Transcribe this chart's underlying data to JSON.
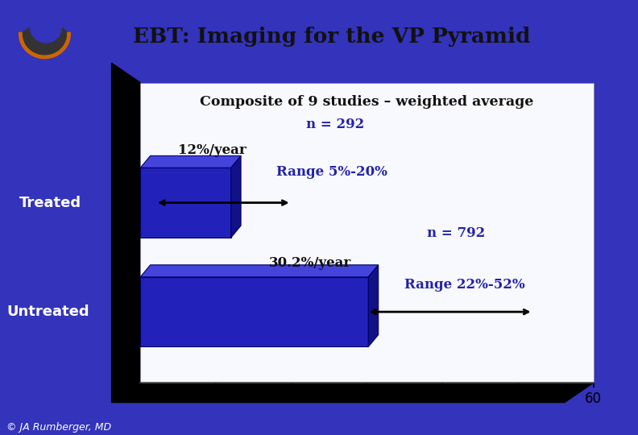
{
  "title": "EBT: Imaging for the VP Pyramid",
  "subtitle": "Composite of 9 studies – weighted average",
  "background_color": "#3333bb",
  "header_bg": "#ffffff",
  "plot_bg": "#f0f0ff",
  "bar_color_face": "#2222bb",
  "bar_color_top": "#4444dd",
  "bar_color_right": "#111188",
  "categories": [
    "Untreated",
    "Treated"
  ],
  "values": [
    30.2,
    12.0
  ],
  "xlim": [
    0,
    60
  ],
  "xticks": [
    0,
    10,
    20,
    30,
    40,
    50,
    60
  ],
  "tick_fontsize": 12,
  "footer_text": "© JA Rumberger, MD",
  "footer_color": "#ffffff",
  "footer_fontsize": 9
}
